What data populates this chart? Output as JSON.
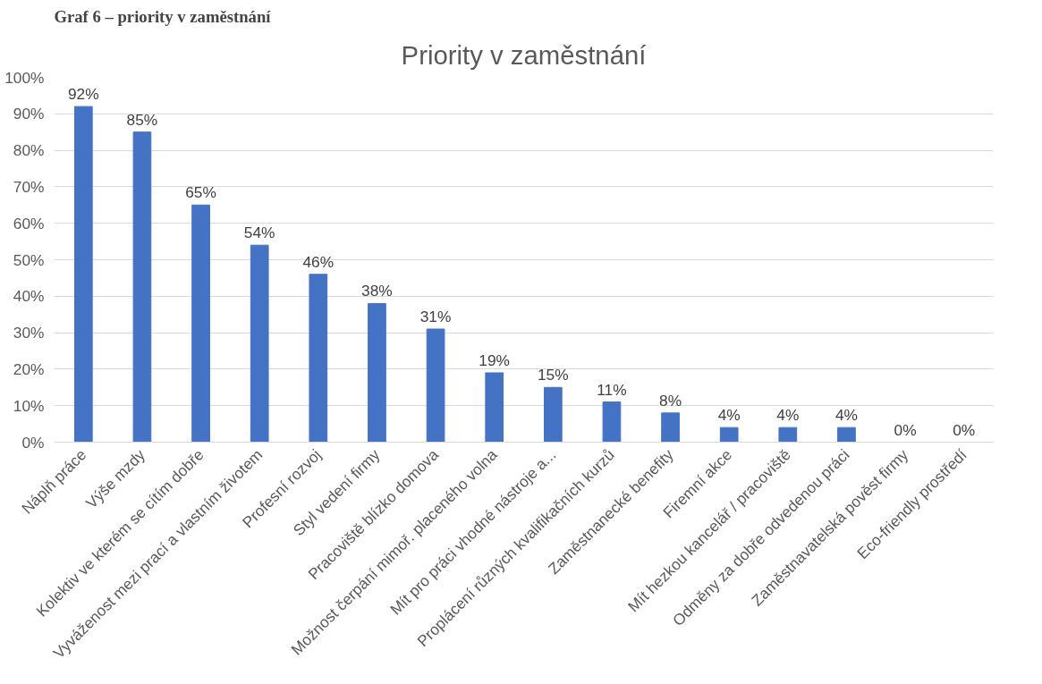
{
  "chart_data": {
    "type": "bar",
    "title": "Priority v zaměstnání",
    "annotations": [
      "Graf 6 – priority v zaměstnání"
    ],
    "categories": [
      "Náplň práce",
      "Výše mzdy",
      "Kolektiv ve kterém se cítím dobře",
      "Vyváženost mezi prací a vlastním životem",
      "Profesní rozvoj",
      "Styl vedení firmy",
      "Pracoviště blízko domova",
      "Možnost čerpání mimoř. placeného volna",
      "Mít pro práci vhodné nástroje a...",
      "Proplácení různých kvalifikačních kurzů",
      "Zaměstnanecké benefity",
      "Firemní akce",
      "Mít hezkou kancelář / pracoviště",
      "Odměny za dobře odvedenou práci",
      "Zaměstnavatelská pověst firmy",
      "Eco-friendly prostředí"
    ],
    "values": [
      92,
      85,
      65,
      54,
      46,
      38,
      31,
      19,
      15,
      11,
      8,
      4,
      4,
      4,
      0,
      0
    ],
    "value_labels": [
      "92%",
      "85%",
      "65%",
      "54%",
      "46%",
      "38%",
      "31%",
      "19%",
      "15%",
      "11%",
      "8%",
      "4%",
      "4%",
      "4%",
      "0%",
      "0%"
    ],
    "color": "#4472c4",
    "ylim": [
      0,
      100
    ],
    "yticks": [
      {
        "value": 0,
        "label": "0%"
      },
      {
        "value": 10,
        "label": "10%"
      },
      {
        "value": 20,
        "label": "20%"
      },
      {
        "value": 30,
        "label": "30%"
      },
      {
        "value": 40,
        "label": "40%"
      },
      {
        "value": 50,
        "label": "50%"
      },
      {
        "value": 60,
        "label": "60%"
      },
      {
        "value": 70,
        "label": "70%"
      },
      {
        "value": 80,
        "label": "80%"
      },
      {
        "value": 90,
        "label": "90%"
      },
      {
        "value": 100,
        "label": "100%"
      }
    ],
    "grid": "y"
  }
}
